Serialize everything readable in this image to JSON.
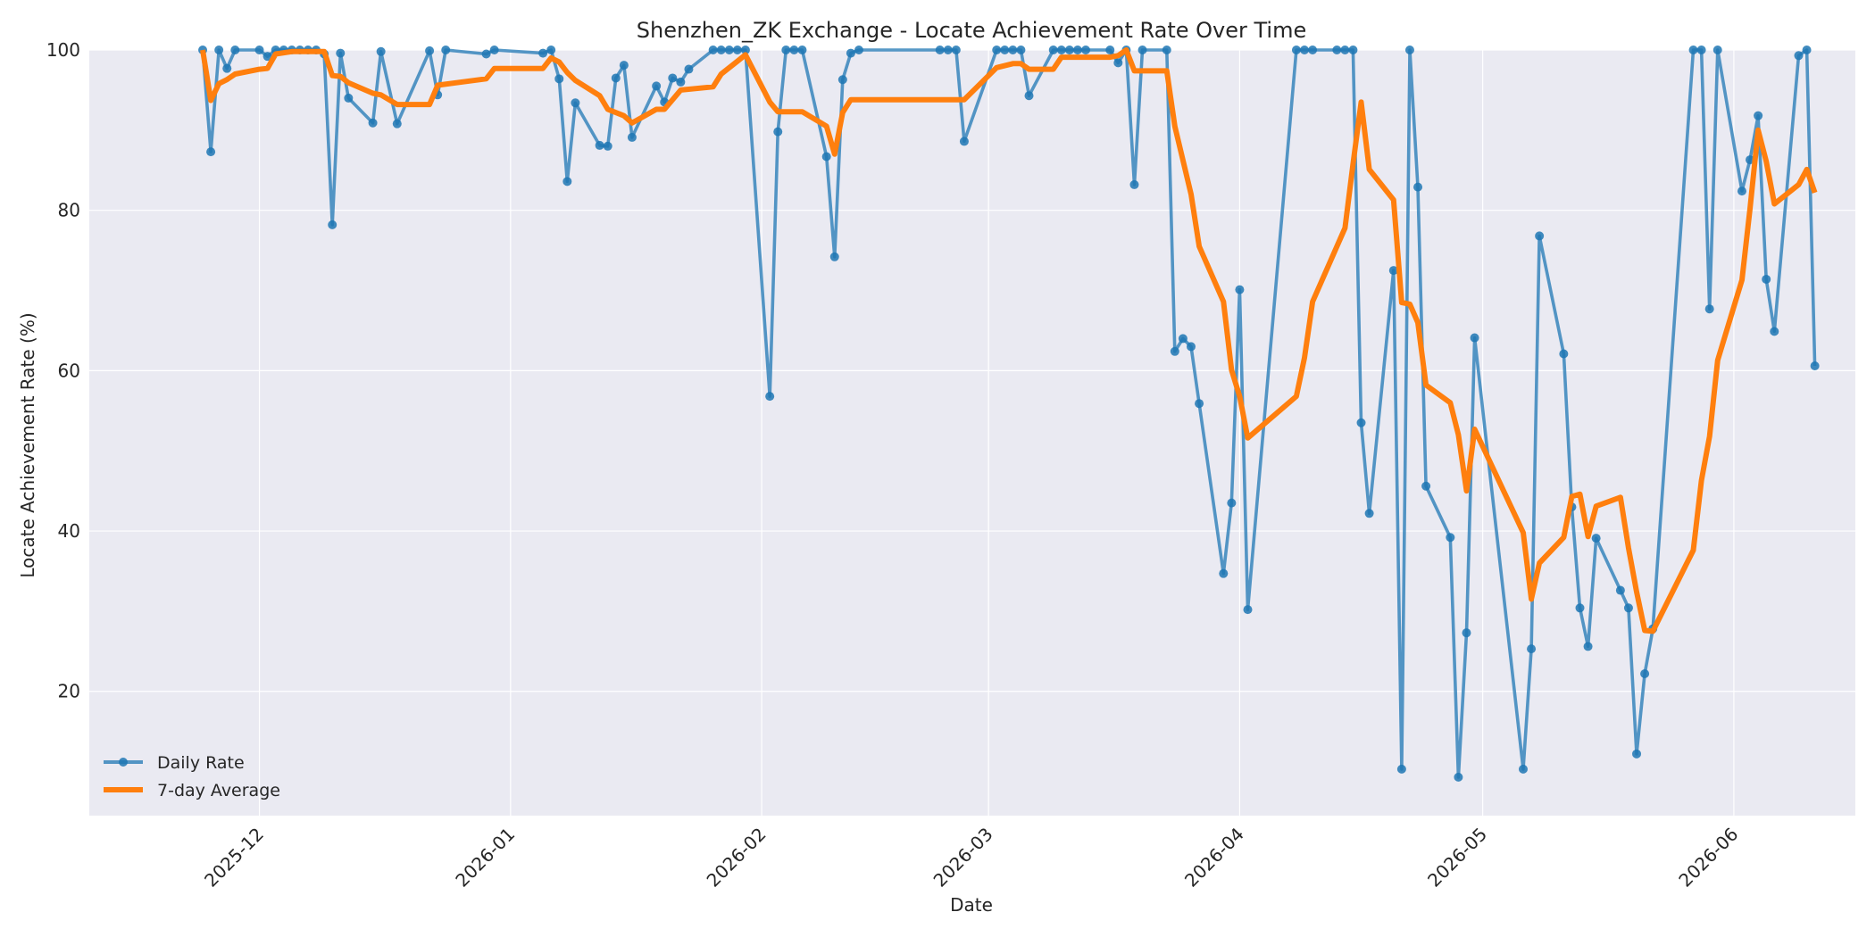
{
  "chart_data": {
    "type": "line",
    "title": "Shenzhen_ZK Exchange - Locate Achievement Rate Over Time",
    "xlabel": "Date",
    "ylabel": "Locate Achievement Rate (%)",
    "xlim": [
      "2025-11-10",
      "2026-06-16"
    ],
    "ylim": [
      4.5,
      100
    ],
    "x_ticks": [
      "2025-12-01",
      "2026-01-01",
      "2026-02-01",
      "2026-03-01",
      "2026-04-01",
      "2026-05-01",
      "2026-06-01"
    ],
    "x_tick_labels": [
      "2025-12",
      "2026-01",
      "2026-02",
      "2026-03",
      "2026-04",
      "2026-05",
      "2026-06"
    ],
    "y_ticks": [
      20,
      40,
      60,
      80,
      100
    ],
    "grid": true,
    "legend_position": "lower-left",
    "colors": {
      "daily": "#1f77b4",
      "average": "#ff7f0e",
      "plot_bg": "#eaeaf2",
      "grid": "#ffffff"
    },
    "series": [
      {
        "name": "Daily Rate",
        "style": "line-with-markers",
        "points": [
          [
            "2025-11-24",
            100
          ],
          [
            "2025-11-25",
            87.3
          ],
          [
            "2025-11-26",
            100
          ],
          [
            "2025-11-27",
            97.7
          ],
          [
            "2025-11-28",
            100
          ],
          [
            "2025-12-01",
            100
          ],
          [
            "2025-12-02",
            99.2
          ],
          [
            "2025-12-03",
            100
          ],
          [
            "2025-12-04",
            100
          ],
          [
            "2025-12-05",
            100
          ],
          [
            "2025-12-06",
            100
          ],
          [
            "2025-12-07",
            100
          ],
          [
            "2025-12-08",
            100
          ],
          [
            "2025-12-09",
            99.5
          ],
          [
            "2025-12-10",
            78.2
          ],
          [
            "2025-12-11",
            99.6
          ],
          [
            "2025-12-12",
            94
          ],
          [
            "2025-12-15",
            90.9
          ],
          [
            "2025-12-16",
            99.8
          ],
          [
            "2025-12-18",
            90.8
          ],
          [
            "2025-12-22",
            99.9
          ],
          [
            "2025-12-23",
            94.4
          ],
          [
            "2025-12-24",
            100
          ],
          [
            "2025-12-29",
            99.5
          ],
          [
            "2025-12-30",
            100
          ],
          [
            "2026-01-05",
            99.6
          ],
          [
            "2026-01-06",
            100
          ],
          [
            "2026-01-07",
            96.4
          ],
          [
            "2026-01-08",
            83.6
          ],
          [
            "2026-01-09",
            93.4
          ],
          [
            "2026-01-12",
            88.1
          ],
          [
            "2026-01-13",
            88
          ],
          [
            "2026-01-14",
            96.5
          ],
          [
            "2026-01-15",
            98.1
          ],
          [
            "2026-01-16",
            89.1
          ],
          [
            "2026-01-19",
            95.5
          ],
          [
            "2026-01-20",
            93.5
          ],
          [
            "2026-01-21",
            96.5
          ],
          [
            "2026-01-22",
            96
          ],
          [
            "2026-01-23",
            97.6
          ],
          [
            "2026-01-26",
            100
          ],
          [
            "2026-01-27",
            100
          ],
          [
            "2026-01-28",
            100
          ],
          [
            "2026-01-29",
            100
          ],
          [
            "2026-01-30",
            100
          ],
          [
            "2026-02-02",
            56.8
          ],
          [
            "2026-02-03",
            89.8
          ],
          [
            "2026-02-04",
            100
          ],
          [
            "2026-02-05",
            100
          ],
          [
            "2026-02-06",
            100
          ],
          [
            "2026-02-09",
            86.7
          ],
          [
            "2026-02-10",
            74.2
          ],
          [
            "2026-02-11",
            96.3
          ],
          [
            "2026-02-12",
            99.6
          ],
          [
            "2026-02-13",
            100
          ],
          [
            "2026-02-23",
            100
          ],
          [
            "2026-02-24",
            100
          ],
          [
            "2026-02-25",
            100
          ],
          [
            "2026-02-26",
            88.6
          ],
          [
            "2026-03-02",
            100
          ],
          [
            "2026-03-03",
            100
          ],
          [
            "2026-03-04",
            100
          ],
          [
            "2026-03-05",
            100
          ],
          [
            "2026-03-06",
            94.3
          ],
          [
            "2026-03-09",
            100
          ],
          [
            "2026-03-10",
            100
          ],
          [
            "2026-03-11",
            100
          ],
          [
            "2026-03-12",
            100
          ],
          [
            "2026-03-13",
            100
          ],
          [
            "2026-03-16",
            100
          ],
          [
            "2026-03-17",
            98.4
          ],
          [
            "2026-03-18",
            100
          ],
          [
            "2026-03-19",
            83.2
          ],
          [
            "2026-03-20",
            100
          ],
          [
            "2026-03-23",
            100
          ],
          [
            "2026-03-24",
            62.4
          ],
          [
            "2026-03-25",
            64
          ],
          [
            "2026-03-26",
            63
          ],
          [
            "2026-03-27",
            55.9
          ],
          [
            "2026-03-30",
            34.7
          ],
          [
            "2026-03-31",
            43.5
          ],
          [
            "2026-04-01",
            70.1
          ],
          [
            "2026-04-02",
            30.2
          ],
          [
            "2026-04-08",
            100
          ],
          [
            "2026-04-09",
            100
          ],
          [
            "2026-04-10",
            100
          ],
          [
            "2026-04-13",
            100
          ],
          [
            "2026-04-14",
            100
          ],
          [
            "2026-04-15",
            100
          ],
          [
            "2026-04-16",
            53.5
          ],
          [
            "2026-04-17",
            42.2
          ],
          [
            "2026-04-20",
            72.5
          ],
          [
            "2026-04-21",
            10.3
          ],
          [
            "2026-04-22",
            100
          ],
          [
            "2026-04-23",
            82.9
          ],
          [
            "2026-04-24",
            45.6
          ],
          [
            "2026-04-27",
            39.2
          ],
          [
            "2026-04-28",
            9.3
          ],
          [
            "2026-04-29",
            27.3
          ],
          [
            "2026-04-30",
            64.1
          ],
          [
            "2026-05-06",
            10.3
          ],
          [
            "2026-05-07",
            25.3
          ],
          [
            "2026-05-08",
            76.8
          ],
          [
            "2026-05-11",
            62.1
          ],
          [
            "2026-05-12",
            43
          ],
          [
            "2026-05-13",
            30.4
          ],
          [
            "2026-05-14",
            25.6
          ],
          [
            "2026-05-15",
            39.1
          ],
          [
            "2026-05-18",
            32.6
          ],
          [
            "2026-05-19",
            30.4
          ],
          [
            "2026-05-20",
            12.2
          ],
          [
            "2026-05-21",
            22.2
          ],
          [
            "2026-05-22",
            27.8
          ],
          [
            "2026-05-27",
            100
          ],
          [
            "2026-05-28",
            100
          ],
          [
            "2026-05-29",
            67.7
          ],
          [
            "2026-05-30",
            100
          ],
          [
            "2026-06-02",
            82.4
          ],
          [
            "2026-06-03",
            86.3
          ],
          [
            "2026-06-04",
            91.8
          ],
          [
            "2026-06-05",
            71.4
          ],
          [
            "2026-06-06",
            64.9
          ],
          [
            "2026-06-09",
            99.3
          ],
          [
            "2026-06-10",
            100
          ],
          [
            "2026-06-11",
            60.6
          ]
        ]
      },
      {
        "name": "7-day Average",
        "style": "line",
        "points": [
          [
            "2025-11-24",
            100
          ],
          [
            "2025-11-25",
            93.7
          ],
          [
            "2025-11-26",
            95.8
          ],
          [
            "2025-11-27",
            96.3
          ],
          [
            "2025-11-28",
            97
          ],
          [
            "2025-12-01",
            97.6
          ],
          [
            "2025-12-02",
            97.7
          ],
          [
            "2025-12-03",
            99.5
          ],
          [
            "2025-12-05",
            99.8
          ],
          [
            "2025-12-09",
            99.8
          ],
          [
            "2025-12-10",
            96.8
          ],
          [
            "2025-12-11",
            96.7
          ],
          [
            "2025-12-12",
            95.9
          ],
          [
            "2025-12-15",
            94.6
          ],
          [
            "2025-12-16",
            94.4
          ],
          [
            "2025-12-18",
            93.2
          ],
          [
            "2025-12-22",
            93.2
          ],
          [
            "2025-12-23",
            95.6
          ],
          [
            "2025-12-29",
            96.4
          ],
          [
            "2025-12-30",
            97.7
          ],
          [
            "2026-01-05",
            97.7
          ],
          [
            "2026-01-06",
            99
          ],
          [
            "2026-01-07",
            98.5
          ],
          [
            "2026-01-08",
            97.2
          ],
          [
            "2026-01-09",
            96.2
          ],
          [
            "2026-01-12",
            94.3
          ],
          [
            "2026-01-13",
            92.6
          ],
          [
            "2026-01-15",
            91.8
          ],
          [
            "2026-01-16",
            90.9
          ],
          [
            "2026-01-19",
            92.6
          ],
          [
            "2026-01-20",
            92.6
          ],
          [
            "2026-01-22",
            95
          ],
          [
            "2026-01-26",
            95.4
          ],
          [
            "2026-01-27",
            97
          ],
          [
            "2026-01-29",
            98.6
          ],
          [
            "2026-01-30",
            99.4
          ],
          [
            "2026-02-02",
            93.5
          ],
          [
            "2026-02-03",
            92.3
          ],
          [
            "2026-02-06",
            92.3
          ],
          [
            "2026-02-09",
            90.5
          ],
          [
            "2026-02-10",
            87
          ],
          [
            "2026-02-11",
            92.2
          ],
          [
            "2026-02-12",
            93.8
          ],
          [
            "2026-02-26",
            93.8
          ],
          [
            "2026-03-02",
            97.8
          ],
          [
            "2026-03-04",
            98.3
          ],
          [
            "2026-03-05",
            98.3
          ],
          [
            "2026-03-06",
            97.6
          ],
          [
            "2026-03-09",
            97.6
          ],
          [
            "2026-03-10",
            99.1
          ],
          [
            "2026-03-16",
            99.1
          ],
          [
            "2026-03-17",
            99.3
          ],
          [
            "2026-03-18",
            100
          ],
          [
            "2026-03-19",
            97.4
          ],
          [
            "2026-03-23",
            97.4
          ],
          [
            "2026-03-24",
            90.5
          ],
          [
            "2026-03-26",
            82
          ],
          [
            "2026-03-27",
            75.5
          ],
          [
            "2026-03-30",
            68.6
          ],
          [
            "2026-03-31",
            60.1
          ],
          [
            "2026-04-01",
            56.8
          ],
          [
            "2026-04-02",
            51.6
          ],
          [
            "2026-04-08",
            56.8
          ],
          [
            "2026-04-09",
            61.6
          ],
          [
            "2026-04-10",
            68.6
          ],
          [
            "2026-04-14",
            77.8
          ],
          [
            "2026-04-15",
            85.8
          ],
          [
            "2026-04-16",
            93.5
          ],
          [
            "2026-04-17",
            85.1
          ],
          [
            "2026-04-20",
            81.3
          ],
          [
            "2026-04-21",
            68.5
          ],
          [
            "2026-04-22",
            68.3
          ],
          [
            "2026-04-23",
            66
          ],
          [
            "2026-04-24",
            58.2
          ],
          [
            "2026-04-27",
            56
          ],
          [
            "2026-04-28",
            52
          ],
          [
            "2026-04-29",
            45
          ],
          [
            "2026-04-30",
            52.7
          ],
          [
            "2026-05-06",
            39.8
          ],
          [
            "2026-05-07",
            31.5
          ],
          [
            "2026-05-08",
            36
          ],
          [
            "2026-05-11",
            39.2
          ],
          [
            "2026-05-12",
            44.3
          ],
          [
            "2026-05-13",
            44.6
          ],
          [
            "2026-05-14",
            39.3
          ],
          [
            "2026-05-15",
            43.1
          ],
          [
            "2026-05-18",
            44.2
          ],
          [
            "2026-05-19",
            37.9
          ],
          [
            "2026-05-20",
            32.4
          ],
          [
            "2026-05-21",
            27.6
          ],
          [
            "2026-05-22",
            27.5
          ],
          [
            "2026-05-27",
            37.6
          ],
          [
            "2026-05-28",
            46.3
          ],
          [
            "2026-05-29",
            51.8
          ],
          [
            "2026-05-30",
            61.3
          ],
          [
            "2026-06-02",
            71.3
          ],
          [
            "2026-06-03",
            80.2
          ],
          [
            "2026-06-04",
            90
          ],
          [
            "2026-06-05",
            86.1
          ],
          [
            "2026-06-06",
            80.8
          ],
          [
            "2026-06-09",
            83.2
          ],
          [
            "2026-06-10",
            85.1
          ],
          [
            "2026-06-11",
            82.2
          ]
        ]
      }
    ]
  }
}
